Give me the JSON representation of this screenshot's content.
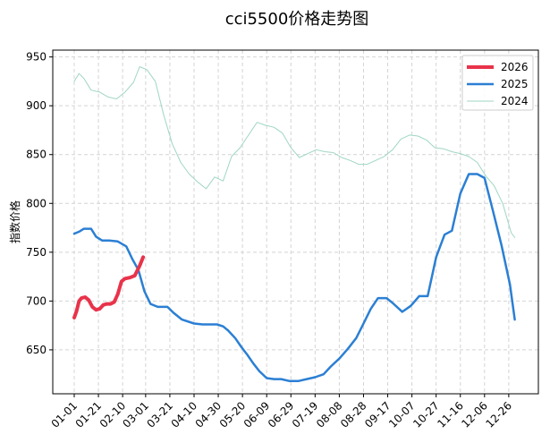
{
  "chart_data": {
    "type": "line",
    "title": "cci5500价格走势图",
    "xlabel": "",
    "ylabel": "指数价格",
    "x_ticks": [
      "01-01",
      "01-21",
      "02-10",
      "03-01",
      "03-21",
      "04-10",
      "04-30",
      "05-20",
      "06-09",
      "06-29",
      "07-19",
      "08-08",
      "08-28",
      "09-17",
      "10-07",
      "10-27",
      "11-16",
      "12-06",
      "12-26"
    ],
    "y_ticks": [
      650,
      700,
      750,
      800,
      850,
      900,
      950
    ],
    "ylim": [
      605,
      957
    ],
    "grid": true,
    "legend_position": "top-right",
    "series": [
      {
        "name": "2026",
        "color": "#e8334a",
        "x": [
          "01-01",
          "01-03",
          "01-05",
          "01-07",
          "01-10",
          "01-13",
          "01-16",
          "01-19",
          "01-22",
          "01-25",
          "01-28",
          "01-31",
          "02-03",
          "02-06",
          "02-09",
          "02-12",
          "02-16",
          "02-20",
          "02-24",
          "02-27"
        ],
        "y": [
          683,
          690,
          700,
          703,
          704,
          701,
          694,
          691,
          692,
          696,
          697,
          697,
          699,
          707,
          720,
          723,
          724,
          726,
          736,
          745
        ]
      },
      {
        "name": "2025",
        "color": "#2b7fd4",
        "x": [
          "01-01",
          "01-05",
          "01-09",
          "01-15",
          "01-19",
          "01-24",
          "01-30",
          "02-06",
          "02-13",
          "02-18",
          "02-23",
          "02-28",
          "03-05",
          "03-11",
          "03-19",
          "03-24",
          "03-31",
          "04-10",
          "04-17",
          "04-24",
          "04-29",
          "05-04",
          "05-08",
          "05-14",
          "05-19",
          "05-24",
          "05-29",
          "06-03",
          "06-09",
          "06-15",
          "06-21",
          "06-28",
          "07-05",
          "07-12",
          "07-19",
          "07-26",
          "08-01",
          "08-08",
          "08-15",
          "08-22",
          "08-28",
          "09-03",
          "09-09",
          "09-16",
          "09-21",
          "09-29",
          "10-06",
          "10-13",
          "10-20",
          "10-27",
          "11-03",
          "11-09",
          "11-16",
          "11-23",
          "11-30",
          "12-06",
          "12-13",
          "12-20",
          "12-27",
          "12-31"
        ],
        "y": [
          769,
          771,
          774,
          774,
          766,
          762,
          762,
          761,
          756,
          743,
          732,
          710,
          697,
          694,
          694,
          688,
          681,
          677,
          676,
          676,
          676,
          674,
          670,
          662,
          653,
          645,
          636,
          628,
          621,
          620,
          620,
          618,
          618,
          620,
          622,
          625,
          633,
          641,
          651,
          662,
          677,
          692,
          703,
          703,
          698,
          689,
          695,
          705,
          705,
          745,
          768,
          772,
          810,
          830,
          830,
          826,
          792,
          757,
          717,
          681
        ]
      },
      {
        "name": "2024",
        "color": "#9fd6c3",
        "x": [
          "01-01",
          "01-05",
          "01-09",
          "01-15",
          "01-22",
          "01-29",
          "02-05",
          "02-12",
          "02-19",
          "02-24",
          "03-02",
          "03-09",
          "03-16",
          "03-23",
          "03-30",
          "04-06",
          "04-13",
          "04-20",
          "04-27",
          "05-04",
          "05-11",
          "05-18",
          "05-25",
          "06-01",
          "06-08",
          "06-15",
          "06-22",
          "06-29",
          "07-06",
          "07-13",
          "07-20",
          "07-27",
          "08-03",
          "08-10",
          "08-17",
          "08-24",
          "08-31",
          "09-07",
          "09-14",
          "09-21",
          "09-28",
          "10-05",
          "10-12",
          "10-19",
          "10-26",
          "11-02",
          "11-09",
          "11-16",
          "11-23",
          "11-30",
          "12-07",
          "12-14",
          "12-21",
          "12-28",
          "12-31"
        ],
        "y": [
          925,
          933,
          928,
          916,
          914,
          909,
          907,
          914,
          924,
          940,
          937,
          925,
          890,
          861,
          842,
          830,
          822,
          815,
          827,
          823,
          848,
          857,
          870,
          883,
          880,
          878,
          872,
          857,
          847,
          851,
          855,
          853,
          852,
          847,
          844,
          840,
          840,
          844,
          848,
          855,
          866,
          870,
          869,
          865,
          857,
          856,
          853,
          851,
          848,
          842,
          828,
          818,
          800,
          770,
          765
        ]
      }
    ]
  }
}
